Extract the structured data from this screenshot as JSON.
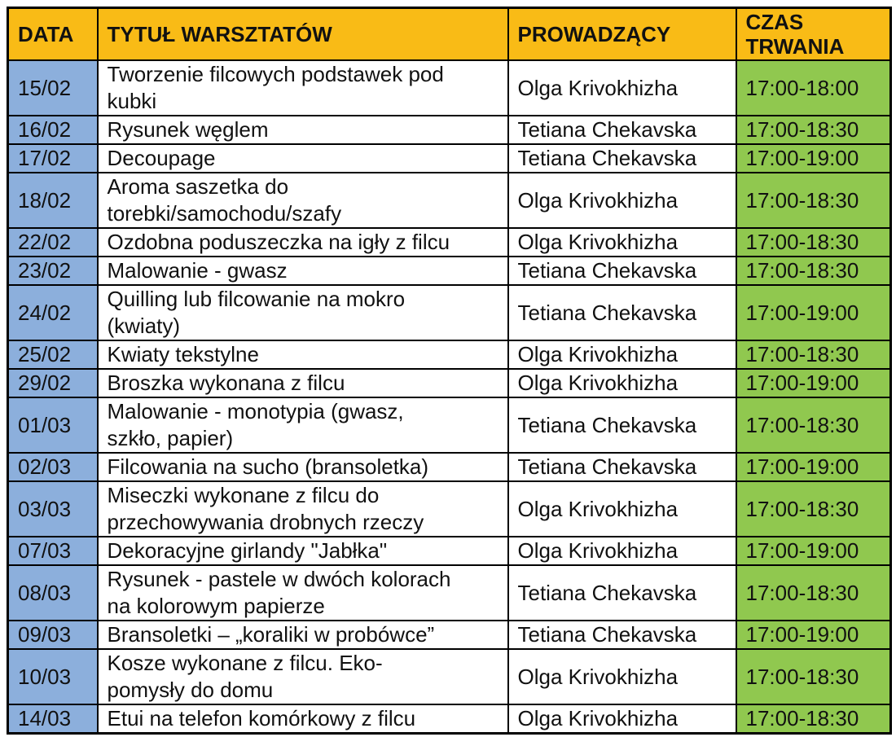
{
  "colors": {
    "header_bg": "#F9BB16",
    "date_column_bg": "#8CAFDC",
    "time_column_bg": "#90C84F",
    "border": "#000000",
    "text": "#111111"
  },
  "table": {
    "headers": [
      {
        "label": "DATA"
      },
      {
        "label": "TYTUŁ WARSZTATÓW"
      },
      {
        "label": "PROWADZĄCY"
      },
      {
        "label": "CZAS TRWANIA"
      }
    ],
    "rows": [
      {
        "date": "15/02",
        "title": "Tworzenie filcowych podstawek pod\nkubki",
        "instructor": "Olga Krivokhizha",
        "time": "17:00-18:00"
      },
      {
        "date": "16/02",
        "title": "Rysunek węglem",
        "instructor": "Tetiana Chekavska",
        "time": "17:00-18:30"
      },
      {
        "date": "17/02",
        "title": "Decoupage",
        "instructor": "Tetiana Chekavska",
        "time": "17:00-19:00"
      },
      {
        "date": "18/02",
        "title": "Aroma saszetka do\ntorebki/samochodu/szafy",
        "instructor": "Olga Krivokhizha",
        "time": "17:00-18:30"
      },
      {
        "date": "22/02",
        "title": "Ozdobna poduszeczka na igły z filcu",
        "instructor": "Olga Krivokhizha",
        "time": "17:00-18:30"
      },
      {
        "date": "23/02",
        "title": "Malowanie - gwasz",
        "instructor": "Tetiana Chekavska",
        "time": "17:00-18:30"
      },
      {
        "date": "24/02",
        "title": "Quilling lub filcowanie na mokro\n(kwiaty)",
        "instructor": "Tetiana Chekavska",
        "time": "17:00-19:00"
      },
      {
        "date": "25/02",
        "title": "Kwiaty tekstylne",
        "instructor": "Olga Krivokhizha",
        "time": "17:00-18:30"
      },
      {
        "date": "29/02",
        "title": "Broszka wykonana z filcu",
        "instructor": "Olga Krivokhizha",
        "time": "17:00-19:00"
      },
      {
        "date": "01/03",
        "title": "Malowanie - monotypia (gwasz,\nszkło, papier)",
        "instructor": "Tetiana Chekavska",
        "time": "17:00-18:30"
      },
      {
        "date": "02/03",
        "title": "Filcowania na sucho (bransoletka)",
        "instructor": "Tetiana Chekavska",
        "time": "17:00-19:00"
      },
      {
        "date": "03/03",
        "title": "Miseczki wykonane z filcu do\nprzechowywania drobnych rzeczy",
        "instructor": "Olga Krivokhizha",
        "time": "17:00-18:30"
      },
      {
        "date": "07/03",
        "title": "Dekoracyjne girlandy \"Jabłka\"",
        "instructor": "Olga Krivokhizha",
        "time": "17:00-19:00"
      },
      {
        "date": "08/03",
        "title": "Rysunek - pastele w dwóch kolorach\nna kolorowym papierze",
        "instructor": "Tetiana Chekavska",
        "time": "17:00-18:30"
      },
      {
        "date": "09/03",
        "title": "Bransoletki – „koraliki w probówce”",
        "instructor": "Tetiana Chekavska",
        "time": "17:00-19:00"
      },
      {
        "date": "10/03",
        "title": "Kosze wykonane z filcu. Eko-\npomysły do domu",
        "instructor": "Olga Krivokhizha",
        "time": "17:00-18:30"
      },
      {
        "date": "14/03",
        "title": "Etui na telefon komórkowy z filcu",
        "instructor": "Olga Krivokhizha",
        "time": "17:00-18:30"
      }
    ]
  }
}
